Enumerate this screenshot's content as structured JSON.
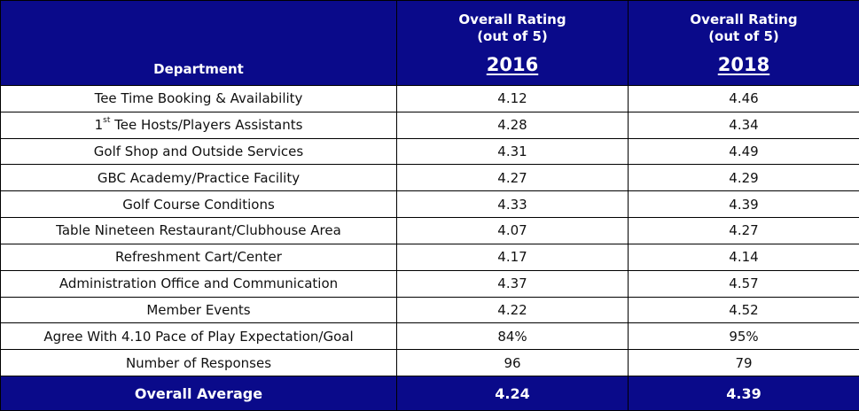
{
  "header": {
    "department_label": "Department",
    "columns": [
      {
        "rating_label": "Overall Rating",
        "rating_sub": "(out of 5)",
        "year": "2016"
      },
      {
        "rating_label": "Overall Rating",
        "rating_sub": "(out of 5)",
        "year": "2018"
      }
    ]
  },
  "rows": [
    {
      "department": "Tee Time Booking & Availability",
      "y2016": "4.12",
      "y2018": "4.46"
    },
    {
      "department_pre": "1",
      "department_sup": "st",
      "department_post": " Tee Hosts/Players Assistants",
      "y2016": "4.28",
      "y2018": "4.34"
    },
    {
      "department": "Golf Shop and Outside Services",
      "y2016": "4.31",
      "y2018": "4.49"
    },
    {
      "department": "GBC Academy/Practice Facility",
      "y2016": "4.27",
      "y2018": "4.29"
    },
    {
      "department": "Golf Course Conditions",
      "y2016": "4.33",
      "y2018": "4.39"
    },
    {
      "department": "Table Nineteen Restaurant/Clubhouse Area",
      "y2016": "4.07",
      "y2018": "4.27"
    },
    {
      "department": "Refreshment Cart/Center",
      "y2016": "4.17",
      "y2018": "4.14"
    },
    {
      "department": "Administration Office and Communication",
      "y2016": "4.37",
      "y2018": "4.57"
    },
    {
      "department": "Member Events",
      "y2016": "4.22",
      "y2018": "4.52"
    },
    {
      "department": "Agree With 4.10 Pace of Play Expectation/Goal",
      "y2016": "84%",
      "y2018": "95%"
    },
    {
      "department": "Number of Responses",
      "y2016": "96",
      "y2018": "79"
    }
  ],
  "footer": {
    "label": "Overall Average",
    "y2016": "4.24",
    "y2018": "4.39"
  },
  "colors": {
    "header_bg": "#0a0a8a",
    "header_text": "#ffffff",
    "border": "#000000"
  }
}
